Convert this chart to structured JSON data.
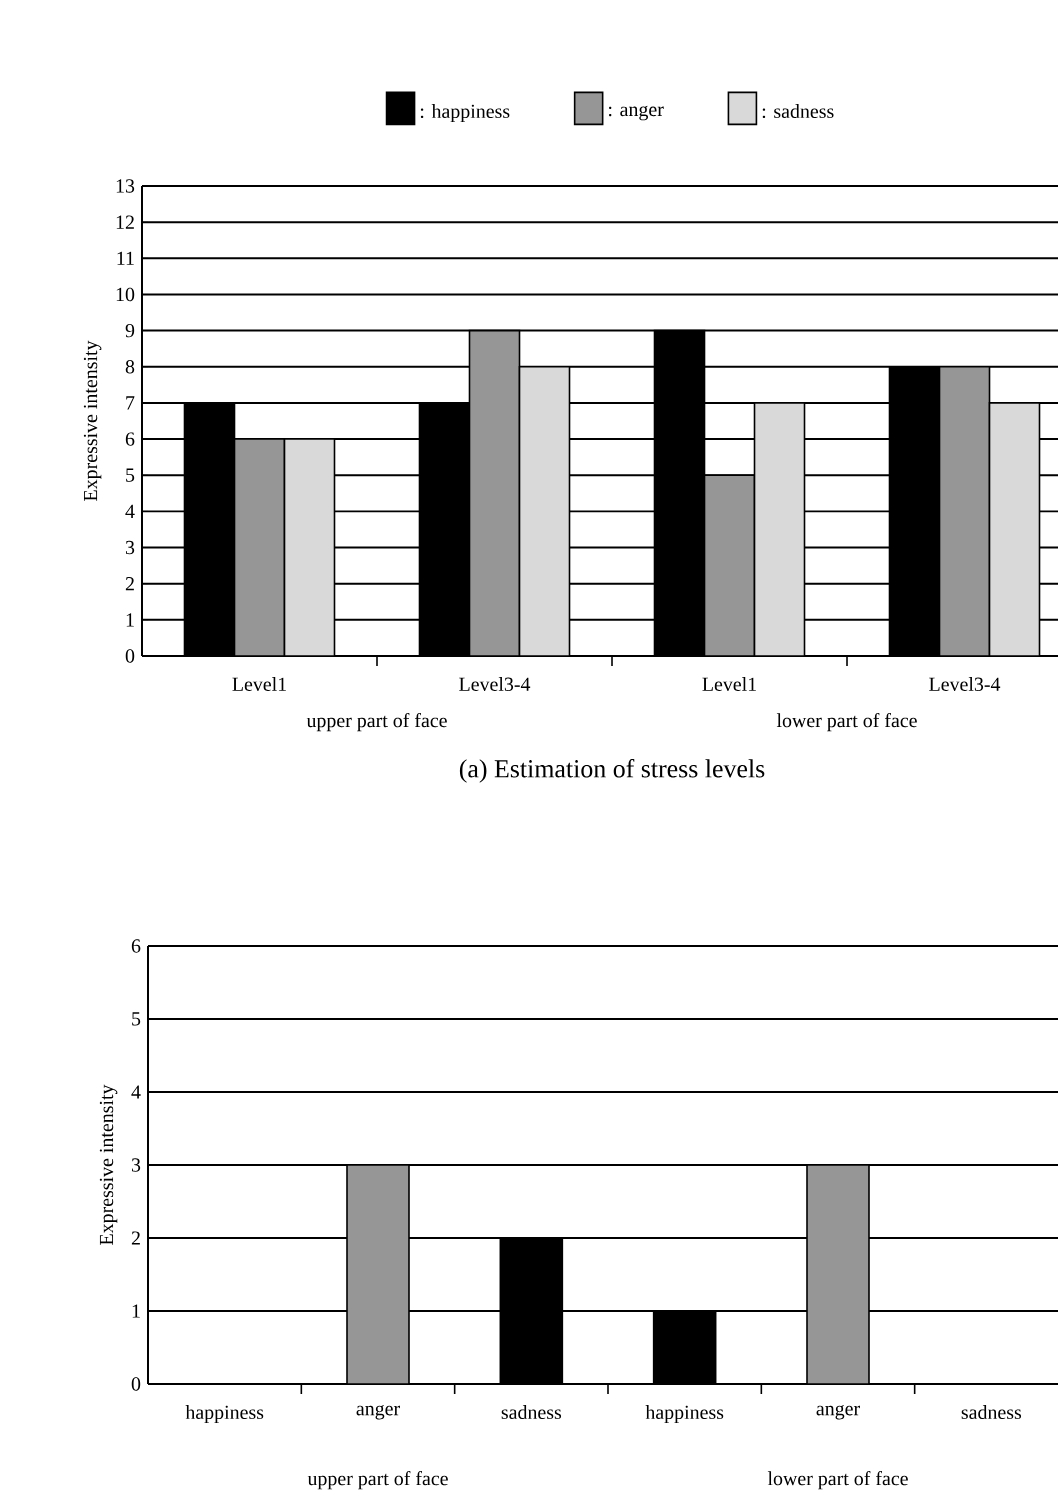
{
  "chart_data": [
    {
      "type": "bar",
      "ylabel": "Expressive intensity",
      "categories": [
        "Level1",
        "Level3-4",
        "Level1",
        "Level3-4"
      ],
      "series": [
        {
          "name": ": happiness",
          "color": "#000000",
          "values": [
            7,
            7,
            9,
            8
          ]
        },
        {
          "name": ": anger",
          "color": "#969696",
          "values": [
            6,
            9,
            5,
            8
          ]
        },
        {
          "name": ": sadness",
          "color": "#d9d9d9",
          "values": [
            6,
            8,
            7,
            7
          ]
        }
      ],
      "ylim": [
        0,
        13
      ],
      "yticks": [
        0,
        1,
        2,
        3,
        4,
        5,
        6,
        7,
        8,
        9,
        10,
        11,
        12,
        13
      ],
      "grid": "y",
      "legend": "top",
      "annotations": [
        "upper part of face",
        "lower part of face",
        "(a) Estimation of stress levels"
      ]
    },
    {
      "type": "bar",
      "ylabel": "Expressive intensity",
      "categories": [
        "happiness",
        "anger",
        "sadness",
        "happiness",
        "anger",
        "sadness"
      ],
      "values": [
        0,
        3,
        2,
        1,
        3,
        0
      ],
      "colors": [
        "#000000",
        "#969696",
        "#000000",
        "#000000",
        "#969696",
        "#000000"
      ],
      "ylim": [
        0,
        6
      ],
      "yticks": [
        0,
        1,
        2,
        3,
        4,
        5,
        6
      ],
      "grid": "y",
      "annotations": [
        "upper part of face",
        "lower part of face"
      ]
    }
  ]
}
